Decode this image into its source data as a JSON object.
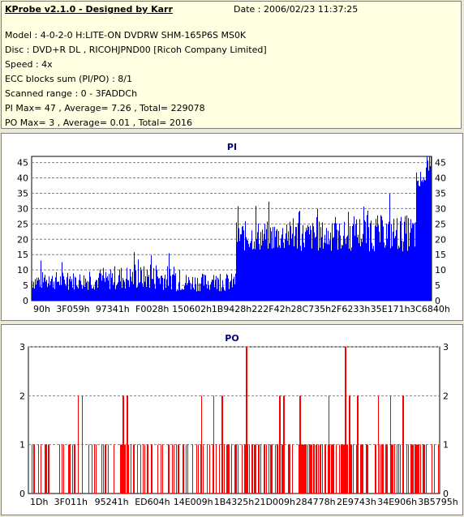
{
  "info": {
    "title": "KProbe v2.1.0 - Designed by Karr",
    "date": "Date : 2006/02/23 11:37:25",
    "lines": [
      "Model : 4-0-2-0 H:LITE-ON DVDRW SHM-165P6S MS0K",
      "Disc : DVD+R DL , RICOHJPND00 [Ricoh Company Limited]",
      "Speed : 4x",
      "ECC blocks sum (PI/PO) : 8/1",
      "Scanned range : 0 - 3FADDCh",
      "PI Max= 47 , Average= 7.26 , Total= 229078",
      "PO Max= 3 , Average= 0.01 , Total= 2016"
    ]
  },
  "colors": {
    "pi": "#0000ff",
    "po": "#ff0000",
    "grid": "#808080",
    "title": "#000080",
    "background": "#ece9d8",
    "info_bg": "#ffffe1"
  },
  "chart_data": [
    {
      "type": "bar",
      "title": "PI",
      "ylim": [
        0,
        47
      ],
      "yticks": [
        0,
        5,
        10,
        15,
        20,
        25,
        30,
        35,
        40,
        45
      ],
      "xticks": [
        "90h",
        "3F059h",
        "97341h",
        "F0028h",
        "150602h",
        "1B9428h",
        "222F42h",
        "28C735h",
        "2F6233h",
        "35E171h",
        "3C6840h"
      ],
      "grid": true,
      "series": [
        {
          "segments": [
            {
              "from": 0.0,
              "to": 0.2,
              "base": 6.5,
              "noise": 3
            },
            {
              "from": 0.2,
              "to": 0.36,
              "base": 7.5,
              "noise": 4
            },
            {
              "from": 0.36,
              "to": 0.51,
              "base": 6,
              "noise": 3
            },
            {
              "from": 0.51,
              "to": 0.8,
              "base": 21,
              "noise": 5
            },
            {
              "from": 0.8,
              "to": 0.96,
              "base": 22,
              "noise": 6
            },
            {
              "from": 0.96,
              "to": 1.0,
              "base": 38,
              "noise": 8
            }
          ],
          "max": 47,
          "average": 7.26
        }
      ]
    },
    {
      "type": "bar",
      "title": "PO",
      "ylim": [
        0,
        3
      ],
      "yticks": [
        0,
        1,
        2,
        3
      ],
      "xticks": [
        "1Dh",
        "3F011h",
        "95241h",
        "ED604h",
        "14E009h",
        "1B4325h",
        "21D009h",
        "284778h",
        "2E9743h",
        "34E906h",
        "3B5795h"
      ],
      "grid": true,
      "series": [
        {
          "max": 3,
          "average": 0.01,
          "peaks3": [
            0.53,
            0.77
          ],
          "peaks2": [
            0.12,
            0.13,
            0.23,
            0.24,
            0.42,
            0.45,
            0.47,
            0.61,
            0.62,
            0.66,
            0.73,
            0.78,
            0.8,
            0.85,
            0.88,
            0.91
          ]
        }
      ]
    }
  ]
}
